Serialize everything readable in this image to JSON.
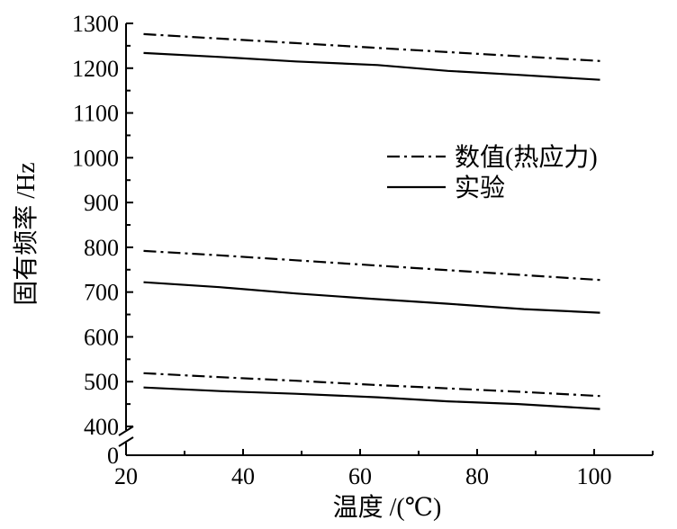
{
  "chart_data": {
    "type": "line",
    "xlabel": "温度 /(℃)",
    "ylabel": "固有频率 /Hz",
    "xlim": [
      20,
      110
    ],
    "x_ticks": [
      "20",
      "40",
      "60",
      "80",
      "100"
    ],
    "y_ticks": [
      "0",
      "400",
      "500",
      "600",
      "700",
      "800",
      "900",
      "1000",
      "1100",
      "1200",
      "1300"
    ],
    "ylim": [
      400,
      1300
    ],
    "y_axis_break": {
      "below": 400,
      "bottom_label": "0"
    },
    "grid": false,
    "legend_position": "right-middle",
    "legend": [
      {
        "label": "数值(热应力)",
        "style": "dash-dot"
      },
      {
        "label": "实验",
        "style": "solid"
      }
    ],
    "series": [
      {
        "legend_index": 0,
        "style": "dash-dot",
        "x": [
          23,
          36,
          49,
          62,
          75,
          88,
          101
        ],
        "values": [
          1276,
          1266,
          1256,
          1246,
          1236,
          1226,
          1216
        ]
      },
      {
        "legend_index": 1,
        "style": "solid",
        "x": [
          23,
          36,
          49,
          63,
          75,
          87,
          101
        ],
        "values": [
          1234,
          1225,
          1215,
          1207,
          1194,
          1185,
          1174
        ]
      },
      {
        "legend_index": 0,
        "style": "dash-dot",
        "x": [
          23,
          36,
          49,
          62,
          75,
          88,
          101
        ],
        "values": [
          792,
          782,
          771,
          760,
          749,
          738,
          727
        ]
      },
      {
        "legend_index": 1,
        "style": "solid",
        "x": [
          23,
          36,
          49,
          62,
          75,
          88,
          101
        ],
        "values": [
          722,
          711,
          697,
          685,
          674,
          662,
          654
        ]
      },
      {
        "legend_index": 0,
        "style": "dash-dot",
        "x": [
          23,
          36,
          49,
          62,
          75,
          88,
          101
        ],
        "values": [
          519,
          510,
          502,
          493,
          485,
          477,
          468
        ]
      },
      {
        "legend_index": 1,
        "style": "solid",
        "x": [
          23,
          36,
          49,
          63,
          75,
          87,
          101
        ],
        "values": [
          487,
          479,
          473,
          465,
          456,
          450,
          439
        ]
      }
    ]
  }
}
